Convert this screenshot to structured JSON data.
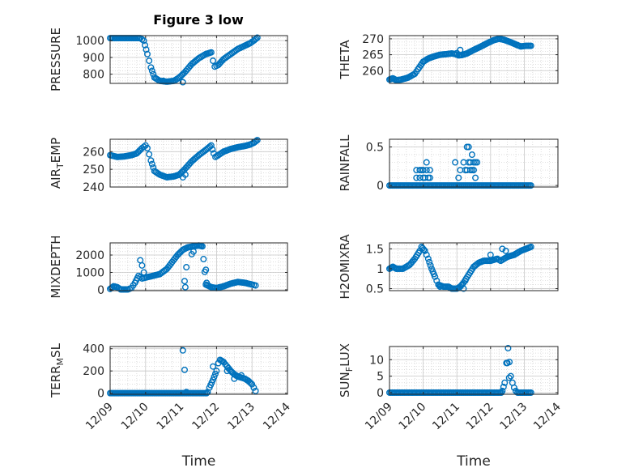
{
  "chart_data": {
    "title": "Figure 3 low",
    "xlabel": "Time",
    "x_ticks": [
      0,
      1,
      2,
      3,
      4,
      5
    ],
    "x_tick_labels": [
      "12/09",
      "12/10",
      "12/11",
      "12/12",
      "12/13",
      "12/14"
    ],
    "marker_color": "#0072BD",
    "panels": [
      {
        "id": "pressure",
        "type": "scatter",
        "ylabel": "PRESSURE",
        "ylim": [
          745,
          1030
        ],
        "yticks": [
          800,
          900,
          1000
        ],
        "anchors": [
          [
            0,
            1015
          ],
          [
            0.85,
            1015
          ],
          [
            0.95,
            1000
          ],
          [
            1.05,
            920
          ],
          [
            1.15,
            840
          ],
          [
            1.25,
            780
          ],
          [
            1.4,
            760
          ],
          [
            1.6,
            755
          ],
          [
            1.8,
            760
          ],
          [
            1.95,
            780
          ],
          [
            2.1,
            810
          ],
          [
            2.3,
            860
          ],
          [
            2.5,
            895
          ],
          [
            2.7,
            920
          ],
          [
            2.85,
            930
          ],
          [
            2.9,
            880
          ],
          [
            2.95,
            845
          ],
          [
            3.05,
            855
          ],
          [
            3.2,
            890
          ],
          [
            3.4,
            920
          ],
          [
            3.6,
            950
          ],
          [
            3.8,
            970
          ],
          [
            3.95,
            985
          ],
          [
            4.05,
            1000
          ],
          [
            4.15,
            1018
          ]
        ],
        "extra_points": [
          [
            2.05,
            752
          ],
          [
            1.5,
            760
          ]
        ]
      },
      {
        "id": "theta",
        "type": "scatter",
        "ylabel": "THETA",
        "ylim": [
          256,
          271
        ],
        "yticks": [
          260,
          265,
          270
        ],
        "anchors": [
          [
            0,
            257.2
          ],
          [
            0.1,
            257.6
          ],
          [
            0.2,
            257.0
          ],
          [
            0.35,
            257.2
          ],
          [
            0.55,
            257.8
          ],
          [
            0.75,
            259.0
          ],
          [
            0.85,
            260.5
          ],
          [
            1.0,
            262.8
          ],
          [
            1.15,
            263.8
          ],
          [
            1.3,
            264.4
          ],
          [
            1.5,
            265.0
          ],
          [
            1.7,
            265.2
          ],
          [
            1.85,
            265.4
          ],
          [
            1.95,
            265.2
          ],
          [
            2.05,
            264.8
          ],
          [
            2.15,
            264.9
          ],
          [
            2.3,
            265.4
          ],
          [
            2.5,
            266.5
          ],
          [
            2.7,
            267.5
          ],
          [
            2.9,
            268.6
          ],
          [
            3.1,
            269.6
          ],
          [
            3.25,
            270.0
          ],
          [
            3.4,
            269.7
          ],
          [
            3.6,
            268.9
          ],
          [
            3.8,
            268.0
          ],
          [
            3.9,
            267.6
          ],
          [
            4.05,
            267.8
          ],
          [
            4.2,
            267.8
          ]
        ],
        "extra_points": [
          [
            2.1,
            266.5
          ],
          [
            2.0,
            265.5
          ]
        ]
      },
      {
        "id": "air_temp",
        "type": "scatter",
        "ylabel": "AIR",
        "ylabel_sub": "T",
        "ylabel_rest": "EMP",
        "ylim": [
          240,
          267
        ],
        "yticks": [
          240,
          250,
          260
        ],
        "anchors": [
          [
            0,
            258
          ],
          [
            0.2,
            257
          ],
          [
            0.4,
            257.3
          ],
          [
            0.6,
            258
          ],
          [
            0.75,
            259
          ],
          [
            0.9,
            262
          ],
          [
            1.0,
            263.5
          ],
          [
            1.05,
            262
          ],
          [
            1.15,
            255
          ],
          [
            1.25,
            249
          ],
          [
            1.4,
            247
          ],
          [
            1.6,
            245.5
          ],
          [
            1.8,
            246
          ],
          [
            1.95,
            247
          ],
          [
            2.1,
            250
          ],
          [
            2.3,
            254.5
          ],
          [
            2.5,
            258
          ],
          [
            2.7,
            261
          ],
          [
            2.85,
            263.5
          ],
          [
            2.92,
            259
          ],
          [
            2.97,
            257
          ],
          [
            3.05,
            258
          ],
          [
            3.2,
            260
          ],
          [
            3.4,
            261.5
          ],
          [
            3.6,
            262.5
          ],
          [
            3.8,
            263.2
          ],
          [
            3.95,
            264
          ],
          [
            4.05,
            265
          ],
          [
            4.15,
            266.5
          ]
        ],
        "extra_points": [
          [
            2.05,
            245.5
          ],
          [
            2.12,
            247
          ]
        ]
      },
      {
        "id": "rainfall",
        "type": "scatter",
        "ylabel": "RAINFALL",
        "ylim": [
          -0.02,
          0.6
        ],
        "yticks": [
          0,
          0.5
        ],
        "ytick_labels": [
          "0",
          "0.5"
        ],
        "baseline": [
          [
            0,
            4.2,
            0
          ]
        ],
        "extra_points": [
          [
            0.8,
            0.1
          ],
          [
            0.8,
            0.2
          ],
          [
            0.9,
            0.1
          ],
          [
            0.9,
            0.2
          ],
          [
            0.95,
            0.2
          ],
          [
            1.0,
            0.1
          ],
          [
            1.0,
            0.2
          ],
          [
            1.05,
            0.1
          ],
          [
            1.1,
            0.2
          ],
          [
            1.1,
            0.3
          ],
          [
            1.15,
            0.1
          ],
          [
            1.2,
            0.2
          ],
          [
            1.2,
            0.1
          ],
          [
            1.95,
            0.3
          ],
          [
            2.05,
            0.1
          ],
          [
            2.1,
            0.2
          ],
          [
            2.2,
            0.3
          ],
          [
            2.25,
            0.2
          ],
          [
            2.3,
            0.5
          ],
          [
            2.35,
            0.5
          ],
          [
            2.3,
            0.2
          ],
          [
            2.35,
            0.3
          ],
          [
            2.4,
            0.3
          ],
          [
            2.45,
            0.4
          ],
          [
            2.45,
            0.2
          ],
          [
            2.5,
            0.3
          ],
          [
            2.55,
            0.3
          ],
          [
            2.4,
            0.2
          ],
          [
            2.55,
            0.1
          ],
          [
            2.5,
            0.2
          ],
          [
            2.6,
            0.3
          ]
        ]
      },
      {
        "id": "mixdepth",
        "type": "scatter",
        "ylabel": "MIXDEPTH",
        "ylim": [
          -50,
          2700
        ],
        "yticks": [
          0,
          1000,
          2000
        ],
        "anchors": [
          [
            0,
            50
          ],
          [
            0.1,
            200
          ],
          [
            0.2,
            150
          ],
          [
            0.3,
            20
          ],
          [
            0.5,
            20
          ],
          [
            0.6,
            100
          ],
          [
            0.7,
            400
          ],
          [
            0.8,
            800
          ],
          [
            0.9,
            650
          ],
          [
            1.0,
            700
          ],
          [
            1.2,
            800
          ],
          [
            1.4,
            900
          ],
          [
            1.6,
            1200
          ],
          [
            1.75,
            1600
          ],
          [
            1.9,
            2000
          ],
          [
            2.05,
            2300
          ],
          [
            2.2,
            2450
          ],
          [
            2.35,
            2500
          ],
          [
            2.5,
            2550
          ],
          [
            2.6,
            2500
          ],
          [
            2.7,
            300
          ],
          [
            2.85,
            150
          ],
          [
            3.0,
            100
          ],
          [
            3.2,
            200
          ],
          [
            3.4,
            350
          ],
          [
            3.6,
            450
          ],
          [
            3.8,
            400
          ],
          [
            4.0,
            300
          ],
          [
            4.1,
            250
          ]
        ],
        "extra_points": [
          [
            0.85,
            1700
          ],
          [
            0.9,
            1400
          ],
          [
            0.95,
            1000
          ],
          [
            2.1,
            500
          ],
          [
            2.12,
            150
          ],
          [
            2.15,
            1300
          ],
          [
            2.3,
            2050
          ],
          [
            2.35,
            2200
          ],
          [
            2.7,
            1150
          ],
          [
            2.72,
            400
          ]
        ]
      },
      {
        "id": "h2omixra",
        "type": "scatter",
        "ylabel": "H2OMIXRA",
        "ylim": [
          0.45,
          1.65
        ],
        "yticks": [
          0.5,
          1,
          1.5
        ],
        "ytick_labels": [
          "0.5",
          "1",
          "1.5"
        ],
        "anchors": [
          [
            0,
            1.0
          ],
          [
            0.1,
            1.05
          ],
          [
            0.2,
            1.0
          ],
          [
            0.4,
            1.0
          ],
          [
            0.6,
            1.1
          ],
          [
            0.75,
            1.25
          ],
          [
            0.9,
            1.45
          ],
          [
            0.95,
            1.55
          ],
          [
            1.05,
            1.45
          ],
          [
            1.15,
            1.25
          ],
          [
            1.25,
            1.0
          ],
          [
            1.35,
            0.8
          ],
          [
            1.45,
            0.6
          ],
          [
            1.6,
            0.55
          ],
          [
            1.75,
            0.55
          ],
          [
            1.85,
            0.5
          ],
          [
            2.0,
            0.5
          ],
          [
            2.1,
            0.55
          ],
          [
            2.2,
            0.65
          ],
          [
            2.35,
            0.85
          ],
          [
            2.5,
            1.05
          ],
          [
            2.65,
            1.15
          ],
          [
            2.8,
            1.2
          ],
          [
            3.0,
            1.2
          ],
          [
            3.2,
            1.25
          ],
          [
            3.3,
            1.2
          ],
          [
            3.5,
            1.3
          ],
          [
            3.7,
            1.35
          ],
          [
            3.9,
            1.45
          ],
          [
            4.05,
            1.5
          ],
          [
            4.2,
            1.55
          ]
        ],
        "extra_points": [
          [
            1.5,
            0.55
          ],
          [
            2.2,
            0.5
          ],
          [
            2.25,
            0.7
          ],
          [
            3.0,
            1.35
          ],
          [
            3.35,
            1.5
          ],
          [
            3.45,
            1.45
          ]
        ]
      },
      {
        "id": "terr_msl",
        "type": "scatter",
        "ylabel": "TERR",
        "ylabel_sub": "M",
        "ylabel_rest": "SL",
        "ylim": [
          -10,
          420
        ],
        "yticks": [
          0,
          200,
          400
        ],
        "baseline": [
          [
            0,
            2.75,
            0
          ]
        ],
        "anchors": [
          [
            2.75,
            10
          ],
          [
            2.8,
            50
          ],
          [
            2.9,
            120
          ],
          [
            3.0,
            200
          ],
          [
            3.05,
            270
          ],
          [
            3.1,
            300
          ],
          [
            3.2,
            280
          ],
          [
            3.3,
            240
          ],
          [
            3.4,
            200
          ],
          [
            3.5,
            170
          ],
          [
            3.6,
            150
          ],
          [
            3.7,
            140
          ],
          [
            3.8,
            130
          ],
          [
            3.9,
            110
          ],
          [
            4.0,
            80
          ],
          [
            4.05,
            50
          ],
          [
            4.1,
            20
          ]
        ],
        "extra_points": [
          [
            2.05,
            385
          ],
          [
            2.1,
            210
          ],
          [
            2.15,
            10
          ],
          [
            2.9,
            240
          ],
          [
            3.3,
            200
          ],
          [
            3.5,
            130
          ],
          [
            3.7,
            160
          ]
        ]
      },
      {
        "id": "sun_flux",
        "type": "scatter",
        "ylabel": "SUN",
        "ylabel_sub": "F",
        "ylabel_rest": "LUX",
        "ylim": [
          -0.5,
          14
        ],
        "yticks": [
          0,
          5,
          10
        ],
        "baseline": [
          [
            0,
            3.35,
            0
          ],
          [
            3.8,
            4.2,
            0
          ]
        ],
        "anchors": [
          [
            3.35,
            0.5
          ],
          [
            3.42,
            3
          ],
          [
            3.47,
            9
          ],
          [
            3.52,
            13.5
          ],
          [
            3.56,
            9.3
          ],
          [
            3.6,
            5
          ],
          [
            3.65,
            3
          ],
          [
            3.7,
            1.5
          ],
          [
            3.75,
            0.5
          ]
        ],
        "extra_points": [
          [
            3.5,
            9.0
          ],
          [
            3.55,
            4.5
          ]
        ]
      }
    ]
  }
}
